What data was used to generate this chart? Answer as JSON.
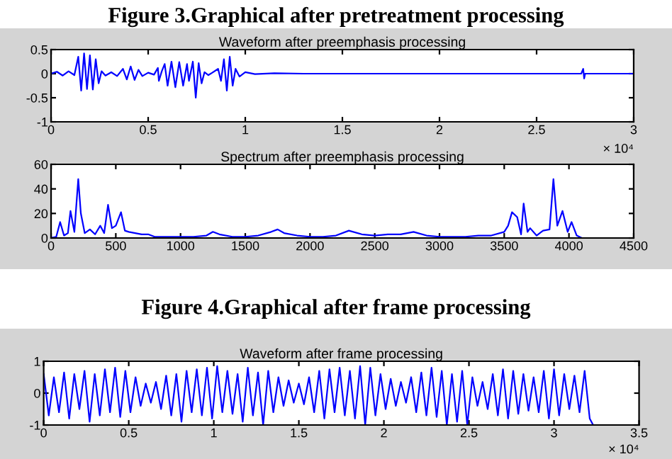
{
  "chart_data": [
    {
      "type": "line",
      "title": "Waveform after preemphasis processing",
      "annotations": [
        "Figure 3.Graphical after pretreatment processing",
        "× 10⁴"
      ],
      "x": [
        0,
        0.03,
        0.06,
        0.09,
        0.12,
        0.14,
        0.155,
        0.17,
        0.185,
        0.2,
        0.215,
        0.23,
        0.245,
        0.26,
        0.28,
        0.31,
        0.34,
        0.37,
        0.39,
        0.41,
        0.43,
        0.45,
        0.47,
        0.5,
        0.53,
        0.55,
        0.555,
        0.57,
        0.585,
        0.6,
        0.62,
        0.64,
        0.66,
        0.68,
        0.7,
        0.71,
        0.73,
        0.745,
        0.76,
        0.775,
        0.79,
        0.81,
        0.83,
        0.86,
        0.875,
        0.89,
        0.905,
        0.92,
        0.935,
        0.95,
        0.97,
        1.0,
        1.05,
        1.15,
        1.3,
        2.0,
        2.73,
        2.74,
        2.745,
        2.75,
        3.0
      ],
      "series": [
        {
          "color": "#0000ff",
          "values": [
            0,
            0.04,
            -0.04,
            0.05,
            -0.03,
            0.35,
            -0.35,
            0.42,
            -0.32,
            0.38,
            -0.33,
            0.3,
            -0.2,
            0.05,
            -0.04,
            0.03,
            -0.05,
            0.1,
            -0.12,
            0.15,
            -0.13,
            0.08,
            -0.05,
            0.02,
            -0.02,
            0.12,
            -0.15,
            0.05,
            0.2,
            -0.25,
            0.25,
            -0.28,
            0.24,
            -0.25,
            0.2,
            -0.15,
            0.25,
            -0.5,
            0.22,
            -0.2,
            0.03,
            -0.03,
            0.02,
            0.1,
            -0.15,
            0.3,
            -0.35,
            0.35,
            -0.25,
            0.1,
            -0.06,
            0.03,
            -0.01,
            0.01,
            0,
            0,
            0,
            0.1,
            -0.1,
            0,
            0
          ]
        }
      ],
      "xlim": [
        0,
        3
      ],
      "ylim": [
        -1,
        0.5
      ],
      "xticks": [
        0,
        0.5,
        1,
        1.5,
        2,
        2.5,
        3
      ],
      "yticks": [
        {
          "value": -1,
          "label": "-1"
        },
        -0.5,
        0,
        0.5
      ],
      "grid": false,
      "legend": false
    },
    {
      "type": "line",
      "title": "Spectrum after preemphasis processing",
      "x": [
        0,
        40,
        70,
        100,
        130,
        150,
        180,
        210,
        230,
        260,
        300,
        340,
        380,
        410,
        440,
        470,
        500,
        540,
        570,
        600,
        650,
        700,
        750,
        800,
        900,
        1000,
        1100,
        1200,
        1250,
        1300,
        1400,
        1500,
        1600,
        1700,
        1750,
        1800,
        1900,
        2000,
        2100,
        2200,
        2300,
        2400,
        2500,
        2600,
        2700,
        2800,
        2900,
        3000,
        3200,
        3300,
        3400,
        3500,
        3530,
        3560,
        3600,
        3630,
        3650,
        3680,
        3700,
        3750,
        3800,
        3850,
        3880,
        3910,
        3950,
        3990,
        4020,
        4060,
        4100
      ],
      "series": [
        {
          "color": "#0000ff",
          "values": [
            0,
            1,
            13,
            2,
            4,
            22,
            5,
            48,
            20,
            4,
            7,
            3,
            10,
            4,
            27,
            8,
            10,
            21,
            6,
            5,
            4,
            3,
            3,
            1,
            1,
            1,
            1,
            2,
            5,
            3,
            1,
            1,
            2,
            5,
            7,
            4,
            2,
            1,
            1,
            2,
            6,
            3,
            2,
            3,
            3,
            5,
            2,
            1,
            1,
            2,
            2,
            5,
            10,
            21,
            17,
            3,
            28,
            5,
            8,
            2,
            6,
            7,
            48,
            10,
            22,
            5,
            13,
            2,
            0
          ]
        }
      ],
      "xlim": [
        0,
        4500
      ],
      "ylim": [
        0,
        60
      ],
      "xticks": [
        0,
        500,
        1000,
        1500,
        2000,
        2500,
        3000,
        3500,
        4000,
        4500
      ],
      "yticks": [
        0,
        20,
        40,
        60
      ],
      "grid": false,
      "legend": false
    },
    {
      "type": "line",
      "title": "Waveform after frame processing",
      "annotations": [
        "Figure 4.Graphical after frame processing",
        "× 10⁴"
      ],
      "x": [
        0,
        0.03,
        0.06,
        0.09,
        0.12,
        0.15,
        0.18,
        0.21,
        0.24,
        0.27,
        0.3,
        0.33,
        0.36,
        0.39,
        0.42,
        0.45,
        0.48,
        0.51,
        0.54,
        0.57,
        0.6,
        0.63,
        0.66,
        0.69,
        0.72,
        0.75,
        0.78,
        0.81,
        0.84,
        0.87,
        0.9,
        0.93,
        0.96,
        0.99,
        1.02,
        1.05,
        1.08,
        1.11,
        1.14,
        1.17,
        1.2,
        1.23,
        1.26,
        1.29,
        1.32,
        1.35,
        1.38,
        1.41,
        1.44,
        1.47,
        1.5,
        1.53,
        1.56,
        1.59,
        1.62,
        1.65,
        1.68,
        1.71,
        1.74,
        1.77,
        1.8,
        1.83,
        1.86,
        1.89,
        1.92,
        1.95,
        1.98,
        2.01,
        2.04,
        2.07,
        2.1,
        2.13,
        2.16,
        2.19,
        2.22,
        2.25,
        2.28,
        2.31,
        2.34,
        2.37,
        2.4,
        2.43,
        2.46,
        2.49,
        2.52,
        2.55,
        2.58,
        2.61,
        2.64,
        2.67,
        2.7,
        2.73,
        2.76,
        2.79,
        2.82,
        2.85,
        2.88,
        2.91,
        2.94,
        2.97,
        3.0,
        3.03,
        3.06,
        3.09,
        3.12,
        3.15,
        3.18,
        3.21,
        3.23
      ],
      "series": [
        {
          "color": "#0000ff",
          "values": [
            0.6,
            -0.7,
            0.5,
            -0.6,
            0.65,
            -0.8,
            0.6,
            -0.5,
            0.7,
            -0.9,
            0.6,
            -0.7,
            0.75,
            -0.6,
            0.8,
            -0.75,
            0.7,
            -0.6,
            0.5,
            -0.4,
            0.3,
            -0.3,
            0.35,
            -0.5,
            0.55,
            -0.7,
            0.6,
            -0.9,
            0.7,
            -0.6,
            0.75,
            -0.7,
            0.8,
            -0.8,
            0.85,
            -0.6,
            0.7,
            -0.65,
            0.6,
            -0.9,
            0.8,
            -0.7,
            0.65,
            -1.0,
            0.7,
            -0.6,
            0.5,
            -0.4,
            0.4,
            -0.3,
            0.3,
            -0.35,
            0.5,
            -0.6,
            0.7,
            -0.8,
            0.75,
            -0.6,
            0.8,
            -0.7,
            0.7,
            -0.8,
            0.85,
            -1.0,
            0.8,
            -0.7,
            0.6,
            -0.5,
            0.45,
            -0.4,
            0.35,
            -0.3,
            0.5,
            -0.6,
            0.65,
            -0.7,
            0.8,
            -0.75,
            0.7,
            -1.0,
            0.6,
            -0.9,
            0.7,
            -1.0,
            0.5,
            -0.4,
            0.35,
            -0.5,
            0.6,
            -0.7,
            0.75,
            -0.8,
            0.7,
            -0.65,
            0.6,
            -0.55,
            0.5,
            -0.6,
            0.7,
            -0.8,
            0.75,
            -0.7,
            0.6,
            -0.5,
            0.55,
            -0.6,
            0.7,
            -0.8,
            -1.0
          ]
        }
      ],
      "xlim": [
        0,
        3.5
      ],
      "ylim": [
        -1,
        1
      ],
      "xticks": [
        0,
        0.5,
        1,
        1.5,
        2,
        2.5,
        3,
        3.5
      ],
      "yticks": [
        -1,
        0,
        1
      ],
      "grid": false,
      "legend": false
    }
  ]
}
